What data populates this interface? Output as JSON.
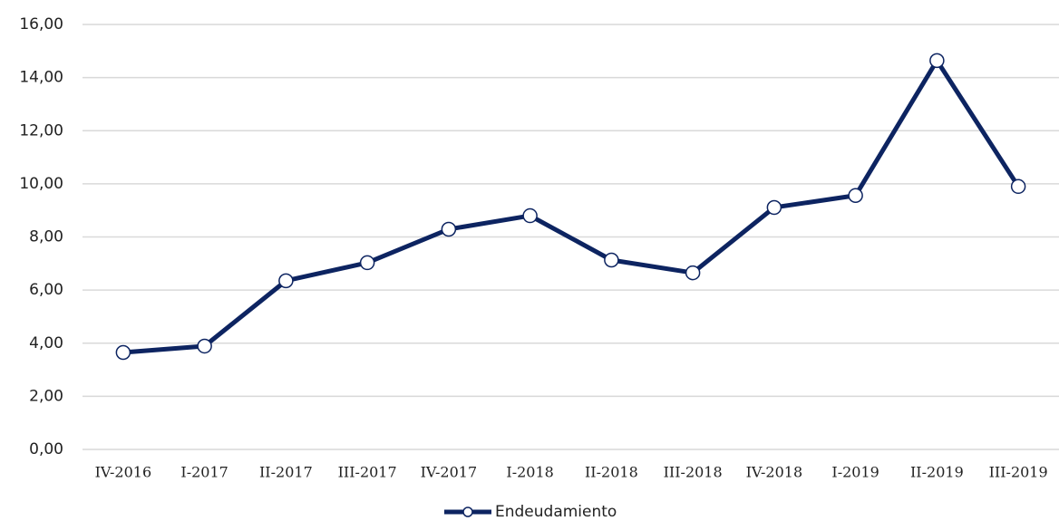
{
  "chart_data": {
    "type": "line",
    "categories": [
      "IV-2016",
      "I-2017",
      "II-2017",
      "III-2017",
      "IV-2017",
      "I-2018",
      "II-2018",
      "III-2018",
      "IV-2018",
      "I-2019",
      "II-2019",
      "III-2019"
    ],
    "series": [
      {
        "name": "Endeudamiento",
        "color": "#0d2461",
        "values": [
          3.65,
          3.89,
          6.35,
          7.03,
          8.29,
          8.8,
          7.13,
          6.65,
          9.11,
          9.56,
          14.64,
          9.9
        ]
      }
    ],
    "ylim": [
      0,
      16
    ],
    "yticks": [
      {
        "value": 0,
        "label": "0,00"
      },
      {
        "value": 2,
        "label": "2,00"
      },
      {
        "value": 4,
        "label": "4,00"
      },
      {
        "value": 6,
        "label": "6,00"
      },
      {
        "value": 8,
        "label": "8,00"
      },
      {
        "value": 10,
        "label": "10,00"
      },
      {
        "value": 12,
        "label": "12,00"
      },
      {
        "value": 14,
        "label": "14,00"
      },
      {
        "value": 16,
        "label": "16,00"
      }
    ],
    "grid": true,
    "legend": "bottom"
  }
}
